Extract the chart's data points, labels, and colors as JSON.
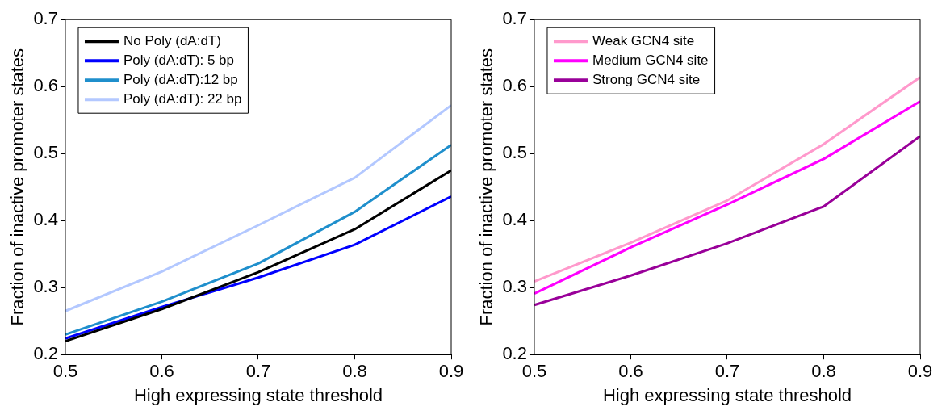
{
  "chart_data": [
    {
      "type": "line",
      "xlabel": "High expressing state threshold",
      "ylabel": "Fraction of inactive promoter states",
      "x": [
        0.5,
        0.6,
        0.7,
        0.8,
        0.9
      ],
      "xlim": [
        0.5,
        0.9
      ],
      "xticks": [
        0.5,
        0.6,
        0.7,
        0.8,
        0.9
      ],
      "ylim": [
        0.2,
        0.7
      ],
      "yticks": [
        0.2,
        0.3,
        0.4,
        0.5,
        0.6,
        0.7
      ],
      "grid": false,
      "legend": "top left",
      "marker": "none",
      "line_style": "solid",
      "series": [
        {
          "name": "No Poly (dA:dT)",
          "color": "#000000",
          "values": [
            0.22,
            0.268,
            0.323,
            0.387,
            0.475
          ]
        },
        {
          "name": "Poly (dA:dT): 5 bp",
          "color": "#0000ff",
          "values": [
            0.224,
            0.271,
            0.315,
            0.364,
            0.436
          ]
        },
        {
          "name": "Poly (dA:dT):12 bp",
          "color": "#1f8fcc",
          "values": [
            0.23,
            0.279,
            0.336,
            0.413,
            0.513
          ]
        },
        {
          "name": "Poly (dA:dT): 22 bp",
          "color": "#b3c8ff",
          "values": [
            0.265,
            0.324,
            0.393,
            0.464,
            0.572
          ]
        }
      ]
    },
    {
      "type": "line",
      "xlabel": "High expressing state threshold",
      "ylabel": "Fraction of inactive promoter states",
      "x": [
        0.5,
        0.6,
        0.7,
        0.8,
        0.9
      ],
      "xlim": [
        0.5,
        0.9
      ],
      "xticks": [
        0.5,
        0.6,
        0.7,
        0.8,
        0.9
      ],
      "ylim": [
        0.2,
        0.7
      ],
      "yticks": [
        0.2,
        0.3,
        0.4,
        0.5,
        0.6,
        0.7
      ],
      "grid": false,
      "legend": "top left",
      "marker": "none",
      "line_style": "solid",
      "series": [
        {
          "name": "Weak GCN4 site",
          "color": "#ff99cc",
          "values": [
            0.309,
            0.367,
            0.43,
            0.514,
            0.614
          ]
        },
        {
          "name": "Medium GCN4 site",
          "color": "#ff00ff",
          "values": [
            0.291,
            0.36,
            0.424,
            0.492,
            0.578
          ]
        },
        {
          "name": "Strong GCN4 site",
          "color": "#990099",
          "values": [
            0.274,
            0.318,
            0.366,
            0.421,
            0.526
          ]
        }
      ]
    }
  ]
}
